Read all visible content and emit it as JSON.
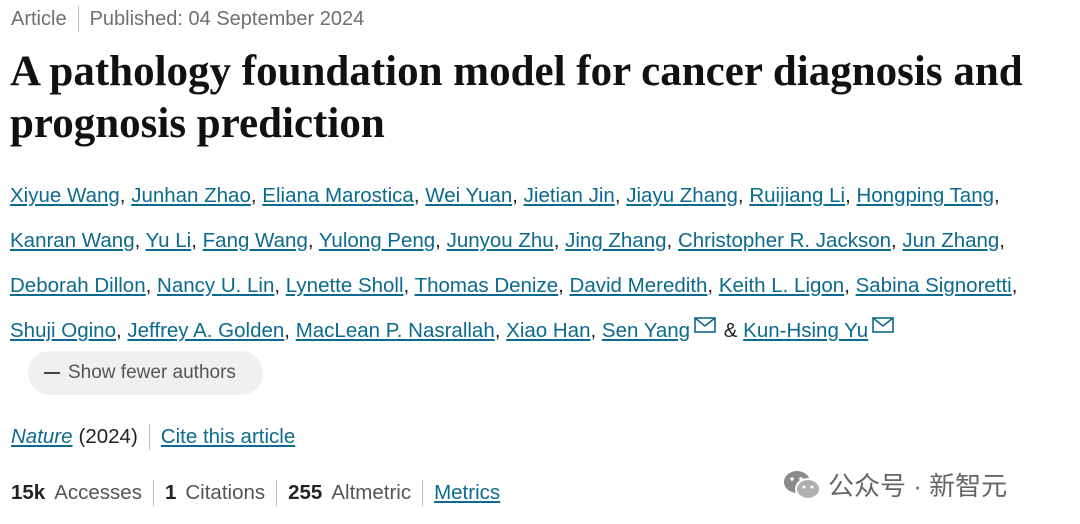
{
  "header": {
    "type": "Article",
    "published": "Published: 04 September 2024"
  },
  "title": "A pathology foundation model for cancer diagnosis and prognosis prediction",
  "authors": [
    "Xiyue Wang",
    "Junhan Zhao",
    "Eliana Marostica",
    "Wei Yuan",
    "Jietian Jin",
    "Jiayu Zhang",
    "Ruijiang Li",
    "Hongping Tang",
    "Kanran Wang",
    "Yu Li",
    "Fang Wang",
    "Yulong Peng",
    "Junyou Zhu",
    "Jing Zhang",
    "Christopher R. Jackson",
    "Jun Zhang",
    "Deborah Dillon",
    "Nancy U. Lin",
    "Lynette Sholl",
    "Thomas Denize",
    "David Meredith",
    "Keith L. Ligon",
    "Sabina Signoretti",
    "Shuji Ogino",
    "Jeffrey A. Golden",
    "MacLean P. Nasrallah",
    "Xiao Han",
    "Sen Yang",
    "Kun-Hsing Yu"
  ],
  "author_separator": ",",
  "author_final_separator": "&",
  "show_fewer_authors": "Show fewer authors",
  "journal": {
    "name": "Nature",
    "year": "(2024)",
    "cite": "Cite this article"
  },
  "metrics": [
    {
      "value": "15k",
      "label": "Accesses"
    },
    {
      "value": 1,
      "label": "Citations"
    },
    {
      "value": 255,
      "label": "Altmetric"
    }
  ],
  "metrics_link": "Metrics",
  "watermark": "公众号 · 新智元"
}
